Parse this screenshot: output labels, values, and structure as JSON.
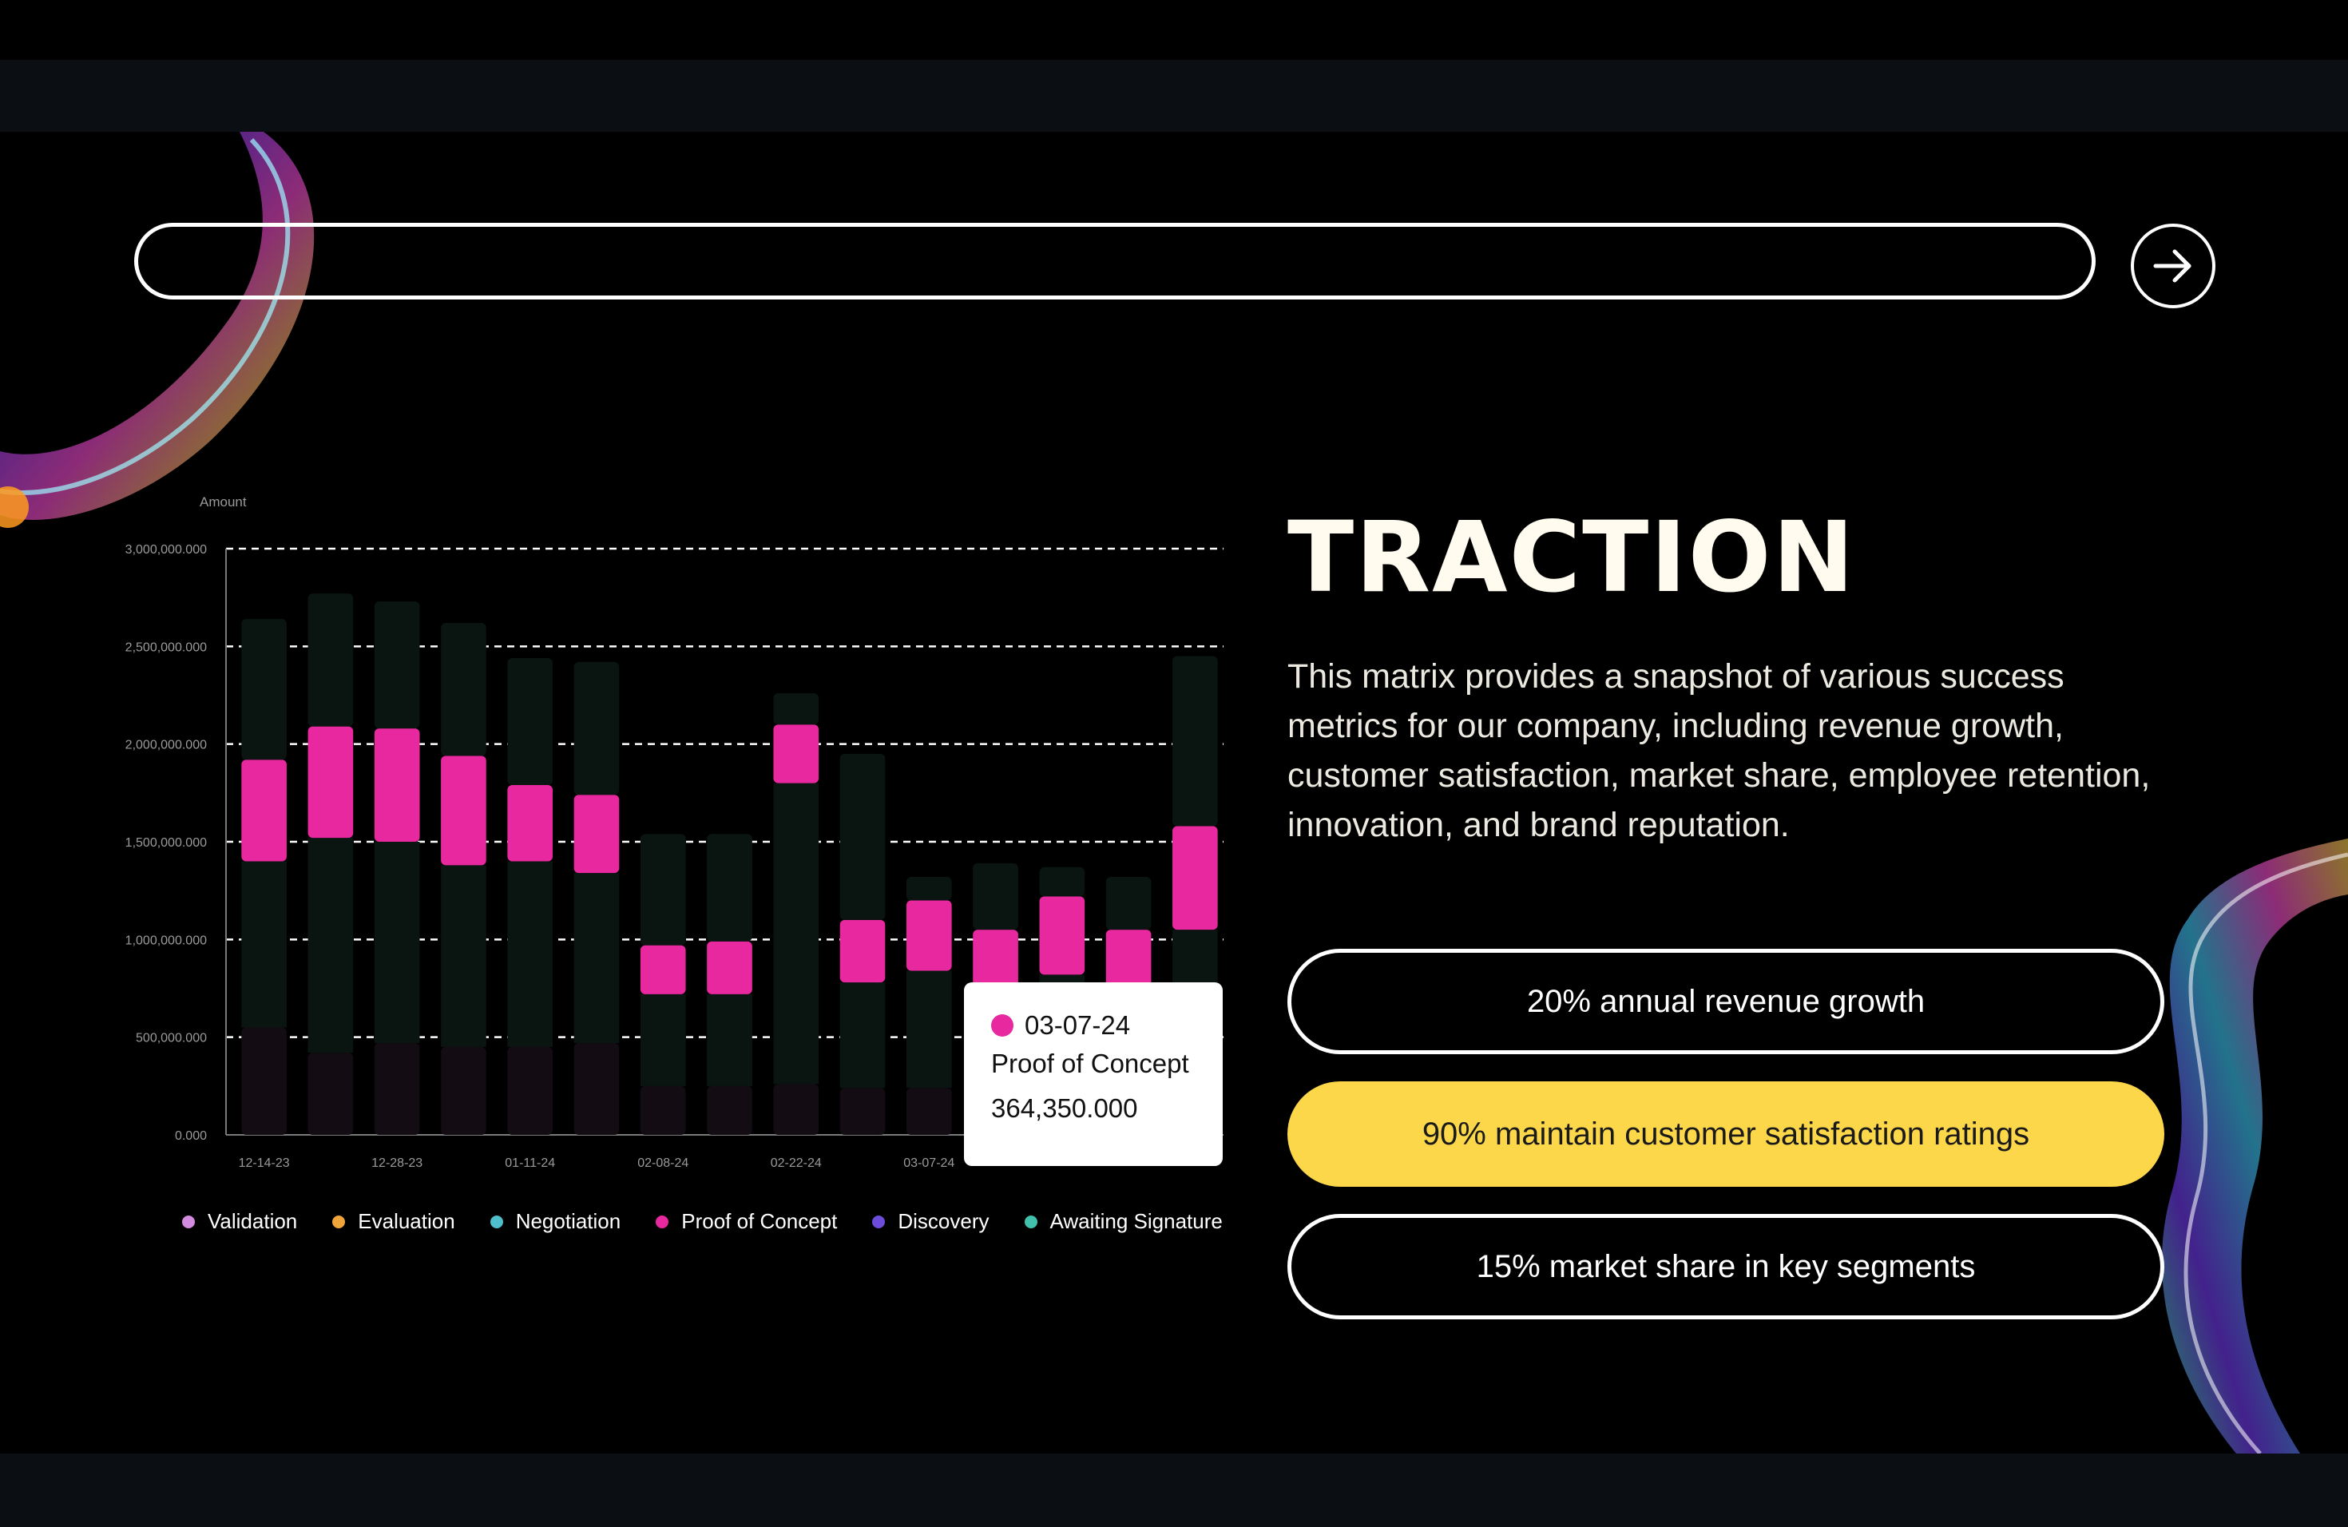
{
  "search": {
    "value": "",
    "placeholder": ""
  },
  "icons": {
    "go": "arrow-right-icon"
  },
  "slide": {
    "title": "TRACTION",
    "description": "This matrix provides a snapshot of various success metrics for our company, including revenue growth, customer satisfaction, market share, employee retention, innovation, and brand reputation.",
    "metrics": [
      {
        "label": "20% annual revenue growth",
        "style": "outline"
      },
      {
        "label": "90% maintain customer satisfaction ratings",
        "style": "filled"
      },
      {
        "label": "15% market share in key segments",
        "style": "outline"
      }
    ]
  },
  "colors": {
    "background": "#000000",
    "frame": "#0b0f13",
    "accent_yellow": "#fdd74a",
    "proof_of_concept": "#e8289f",
    "grid": "#ffffff"
  },
  "chart_data": {
    "type": "bar",
    "stacked": true,
    "ylabel": "Amount",
    "ylim": [
      0,
      3000000000
    ],
    "yticks": [
      "3,000,000.000",
      "2,500,000.000",
      "2,000,000.000",
      "1,500,000.000",
      "1,000,000.000",
      "500,000.000",
      "0.000"
    ],
    "xtick_labels": [
      "12-14-23",
      "12-28-23",
      "01-11-24",
      "02-08-24",
      "02-22-24",
      "03-07-24"
    ],
    "grid": "dashed-horizontal",
    "legend_position": "bottom",
    "legend": [
      {
        "name": "Validation",
        "color": "#d38be0"
      },
      {
        "name": "Evaluation",
        "color": "#f0a53a"
      },
      {
        "name": "Negotiation",
        "color": "#4fbecb"
      },
      {
        "name": "Proof of Concept",
        "color": "#e8289f"
      },
      {
        "name": "Discovery",
        "color": "#6c4cd9"
      },
      {
        "name": "Awaiting Signature",
        "color": "#41c0ab"
      }
    ],
    "bars": [
      {
        "base": 550000000,
        "mid": 850000000,
        "poc": 520000000,
        "top": 720000000
      },
      {
        "base": 420000000,
        "mid": 1100000000,
        "poc": 570000000,
        "top": 680000000
      },
      {
        "base": 470000000,
        "mid": 1030000000,
        "poc": 580000000,
        "top": 650000000
      },
      {
        "base": 450000000,
        "mid": 930000000,
        "poc": 560000000,
        "top": 680000000
      },
      {
        "base": 450000000,
        "mid": 950000000,
        "poc": 390000000,
        "top": 650000000
      },
      {
        "base": 470000000,
        "mid": 870000000,
        "poc": 400000000,
        "top": 680000000
      },
      {
        "base": 250000000,
        "mid": 470000000,
        "poc": 250000000,
        "top": 570000000
      },
      {
        "base": 250000000,
        "mid": 470000000,
        "poc": 270000000,
        "top": 550000000
      },
      {
        "base": 260000000,
        "mid": 1540000000,
        "poc": 300000000,
        "top": 160000000
      },
      {
        "base": 240000000,
        "mid": 540000000,
        "poc": 320000000,
        "top": 850000000
      },
      {
        "base": 240000000,
        "mid": 600000000,
        "poc": 360000000,
        "top": 120000000
      },
      {
        "base": 240000000,
        "mid": 470000000,
        "poc": 340000000,
        "top": 340000000
      },
      {
        "base": 240000000,
        "mid": 580000000,
        "poc": 400000000,
        "top": 150000000
      },
      {
        "base": 240000000,
        "mid": 470000000,
        "poc": 340000000,
        "top": 270000000
      },
      {
        "base": 240000000,
        "mid": 810000000,
        "poc": 530000000,
        "top": 870000000
      }
    ],
    "tooltip": {
      "date": "03-07-24",
      "series": "Proof of Concept",
      "value": "364,350.000"
    }
  }
}
